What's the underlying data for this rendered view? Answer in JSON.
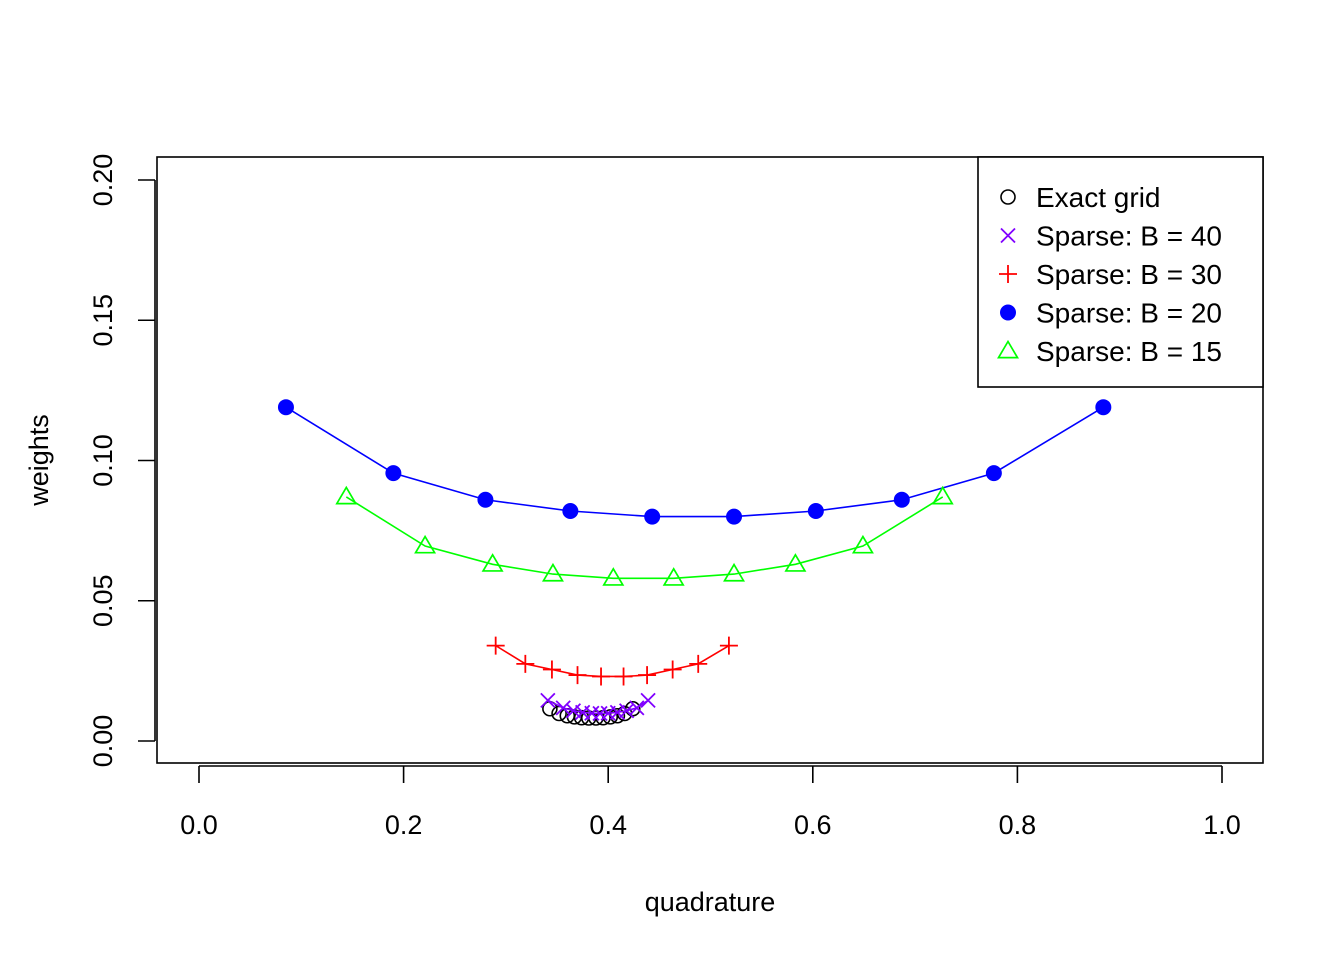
{
  "chart_data": {
    "type": "line",
    "xlabel": "quadrature",
    "ylabel": "weights",
    "xlim": [
      0.0,
      1.0
    ],
    "ylim": [
      0.0,
      0.2
    ],
    "xticks": [
      "0.0",
      "0.2",
      "0.4",
      "0.6",
      "0.8",
      "1.0"
    ],
    "yticks": [
      "0.00",
      "0.05",
      "0.10",
      "0.15",
      "0.20"
    ],
    "legend_position": "top-right",
    "series": [
      {
        "name": "Exact grid",
        "marker": "circle-open",
        "color": "#000000",
        "line": false,
        "x": [
          0.343,
          0.352,
          0.36,
          0.367,
          0.374,
          0.381,
          0.388,
          0.395,
          0.402,
          0.409,
          0.416,
          0.424
        ],
        "y": [
          0.0115,
          0.0098,
          0.009,
          0.0086,
          0.0083,
          0.0082,
          0.0082,
          0.0083,
          0.0086,
          0.009,
          0.0098,
          0.0115
        ]
      },
      {
        "name": "Sparse: B = 40",
        "marker": "cross-x",
        "color": "#8000ff",
        "line": true,
        "x": [
          0.341,
          0.356,
          0.366,
          0.375,
          0.384,
          0.392,
          0.4,
          0.409,
          0.418,
          0.428,
          0.439
        ],
        "y": [
          0.0145,
          0.0118,
          0.0108,
          0.0102,
          0.0099,
          0.0098,
          0.0099,
          0.0102,
          0.0108,
          0.0118,
          0.0145
        ]
      },
      {
        "name": "Sparse: B = 30",
        "marker": "plus",
        "color": "#ff0000",
        "line": true,
        "x": [
          0.29,
          0.319,
          0.345,
          0.37,
          0.393,
          0.415,
          0.438,
          0.463,
          0.488,
          0.518
        ],
        "y": [
          0.034,
          0.0275,
          0.0255,
          0.0235,
          0.023,
          0.023,
          0.0235,
          0.0255,
          0.0275,
          0.034
        ]
      },
      {
        "name": "Sparse: B = 20",
        "marker": "circle-filled",
        "color": "#0000ff",
        "line": true,
        "x": [
          0.085,
          0.19,
          0.28,
          0.363,
          0.443,
          0.523,
          0.603,
          0.687,
          0.777,
          0.884
        ],
        "y": [
          0.119,
          0.0955,
          0.086,
          0.082,
          0.08,
          0.08,
          0.082,
          0.086,
          0.0955,
          0.119
        ]
      },
      {
        "name": "Sparse: B = 15",
        "marker": "triangle-open",
        "color": "#00ff00",
        "line": true,
        "x": [
          0.144,
          0.221,
          0.287,
          0.346,
          0.405,
          0.464,
          0.523,
          0.583,
          0.649,
          0.727
        ],
        "y": [
          0.087,
          0.0695,
          0.063,
          0.0595,
          0.058,
          0.058,
          0.0595,
          0.063,
          0.0695,
          0.087
        ]
      }
    ]
  }
}
